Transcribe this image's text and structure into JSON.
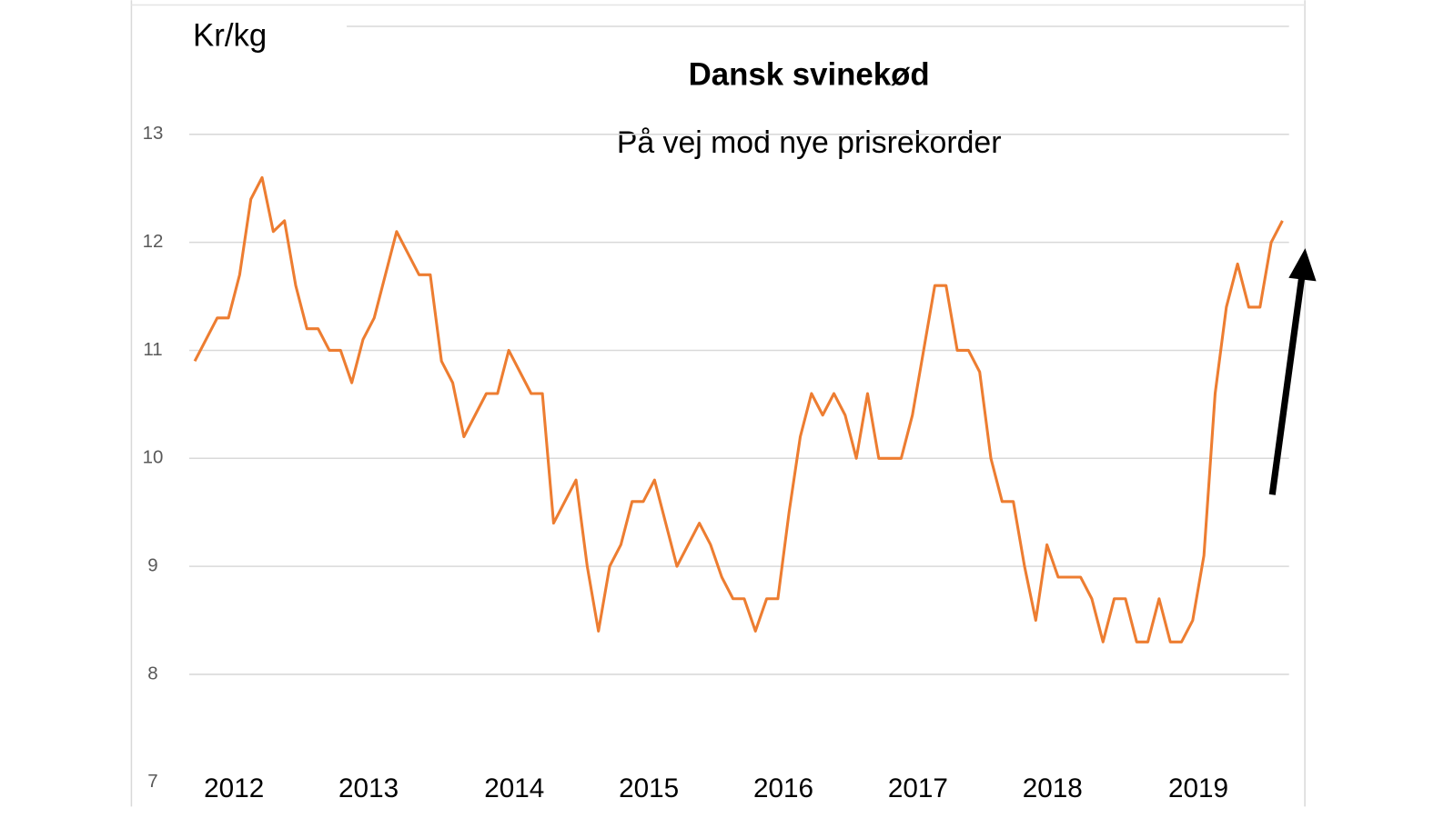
{
  "chart_data": {
    "type": "line",
    "title": "Dansk svinekød",
    "subtitle": "På vej mod nye prisrekorder",
    "y_label": "Kr/kg",
    "categories": [
      null,
      null,
      null,
      "2012",
      null,
      null,
      null,
      null,
      null,
      null,
      null,
      null,
      null,
      null,
      null,
      "2013",
      null,
      null,
      null,
      null,
      null,
      null,
      null,
      null,
      null,
      null,
      null,
      null,
      "2014",
      null,
      null,
      null,
      null,
      null,
      null,
      null,
      null,
      null,
      null,
      null,
      "2015",
      null,
      null,
      null,
      null,
      null,
      null,
      null,
      null,
      null,
      null,
      null,
      "2016",
      null,
      null,
      null,
      null,
      null,
      null,
      null,
      null,
      null,
      null,
      null,
      "2017",
      null,
      null,
      null,
      null,
      null,
      null,
      null,
      null,
      null,
      null,
      null,
      "2018",
      null,
      null,
      null,
      null,
      null,
      null,
      null,
      null,
      null,
      null,
      null,
      null,
      "2019",
      null,
      null,
      null,
      null,
      null,
      null,
      null,
      null
    ],
    "series": [
      {
        "color": "#ed7d31",
        "values": [
          10.9,
          11.1,
          11.3,
          11.3,
          11.7,
          12.4,
          12.6,
          12.1,
          12.2,
          11.6,
          11.2,
          11.2,
          11.0,
          11.0,
          10.7,
          11.1,
          11.3,
          11.7,
          12.1,
          11.9,
          11.7,
          11.7,
          10.9,
          10.7,
          10.2,
          10.4,
          10.6,
          10.6,
          11.0,
          10.8,
          10.6,
          10.6,
          9.4,
          9.6,
          9.8,
          9.0,
          8.4,
          9.0,
          9.2,
          9.6,
          9.6,
          9.8,
          9.4,
          9.0,
          9.2,
          9.4,
          9.2,
          8.9,
          8.7,
          8.7,
          8.4,
          8.7,
          8.7,
          9.5,
          10.2,
          10.6,
          10.4,
          10.6,
          10.4,
          10.0,
          10.6,
          10.0,
          10.0,
          10.0,
          10.4,
          11.0,
          11.6,
          11.6,
          11.0,
          11.0,
          10.8,
          10.0,
          9.6,
          9.6,
          9.0,
          8.5,
          9.2,
          8.9,
          8.9,
          8.9,
          8.7,
          8.3,
          8.7,
          8.7,
          8.3,
          8.3,
          8.7,
          8.3,
          8.3,
          8.5,
          9.1,
          10.6,
          11.4,
          11.8,
          11.4,
          11.4,
          12.0,
          12.2
        ]
      }
    ],
    "ylim": [
      7,
      14
    ],
    "yticks": [
      7,
      8,
      9,
      10,
      11,
      12,
      13
    ],
    "grid": true
  }
}
